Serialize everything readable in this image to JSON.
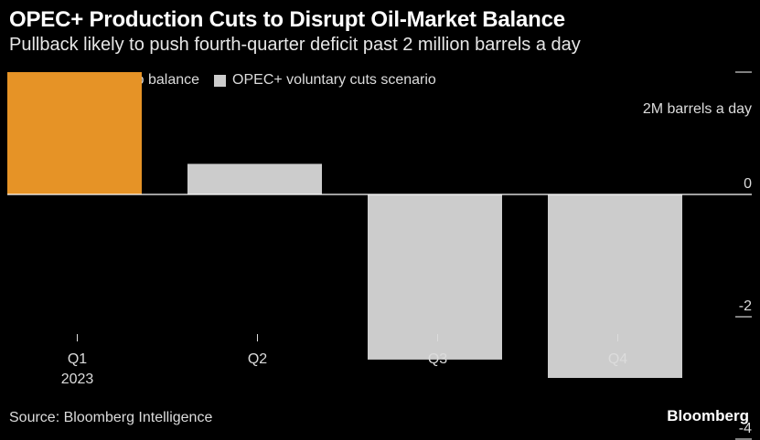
{
  "chart_data": {
    "type": "bar",
    "title": "OPEC+ Production Cuts to Disrupt Oil-Market Balance",
    "subtitle": "Pullback likely to push fourth-quarter deficit past 2 million barrels a day",
    "categories": [
      "Q1",
      "Q2",
      "Q3",
      "Q4"
    ],
    "category_sublabels": [
      "2023",
      "",
      "",
      ""
    ],
    "series": [
      {
        "name": "BI's prior scenario balance",
        "color": "#e69326",
        "values": [
          2.0,
          null,
          null,
          null
        ]
      },
      {
        "name": "OPEC+ voluntary cuts scenario",
        "color": "#cccccc",
        "values": [
          null,
          0.5,
          -2.7,
          -3.0
        ]
      }
    ],
    "unit_label": "2M barrels a day",
    "y_ticks": [
      2,
      0,
      -2,
      -4
    ],
    "y_tick_labels": [
      "",
      "0",
      "-2",
      "-4"
    ],
    "ylim": [
      -5.3,
      2.6
    ],
    "source": "Source: Bloomberg Intelligence",
    "brand": "Bloomberg"
  }
}
